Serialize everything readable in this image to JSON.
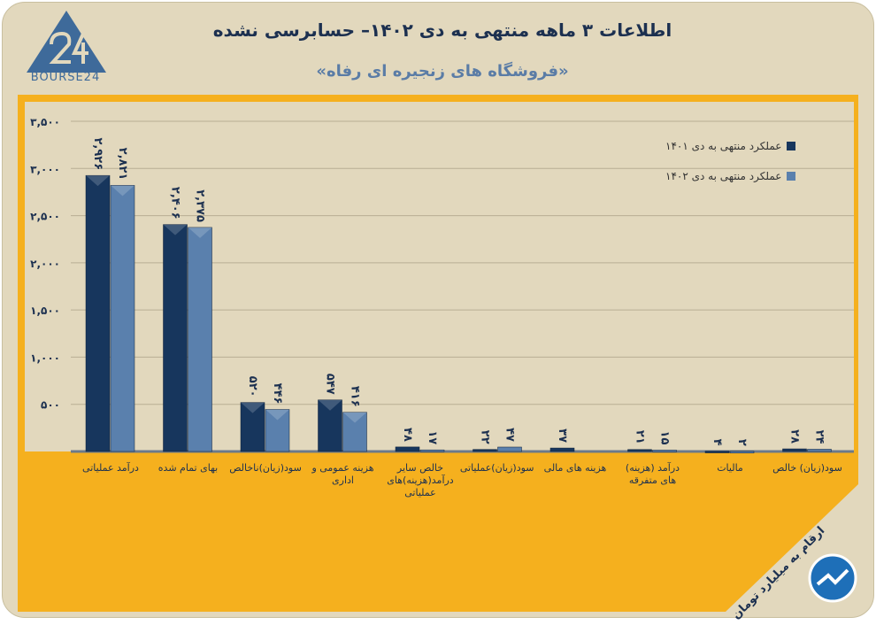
{
  "header": {
    "title": "اطلاعات ۳ ماهه منتهی به دی ۱۴۰۲– حسابرسی نشده",
    "subtitle": "«فروشگاه های زنجیره ای رفاه»",
    "logo_text": "BOURSE24"
  },
  "note": "ارقام به میلیارد تومان",
  "colors": {
    "series1": "#17365d",
    "series2": "#5a80ad",
    "panel": "#f5b01e",
    "plot": "#e2d8bd"
  },
  "chart_data": {
    "type": "bar",
    "ylim": [
      0,
      3500
    ],
    "yticks": [
      500,
      1000,
      1500,
      2000,
      2500,
      3000,
      3500
    ],
    "ytick_labels": [
      "۵۰۰",
      "۱,۰۰۰",
      "۱,۵۰۰",
      "۲,۰۰۰",
      "۲,۵۰۰",
      "۳,۰۰۰",
      "۳,۵۰۰"
    ],
    "grid": true,
    "legend_position": "top-right",
    "categories": [
      "درآمد عملیاتی",
      "بهای تمام شده",
      "سود(زیان)ناخالص",
      "هزینه عمومی و اداری",
      "خالص سایر درآمد(هزینه)های عملیاتی",
      "سود(زیان)عملیاتی",
      "هزینه های مالی",
      "درآمد (هزینه) های متفرقه",
      "مالیات",
      "سود(زیان) خالص"
    ],
    "series": [
      {
        "name": "عملکرد منتهی به دی ۱۴۰۱",
        "values": [
          2926,
          2406,
          520,
          547,
          48,
          22,
          37,
          21,
          4,
          28
        ],
        "labels": [
          "۲,۹۲۶",
          "۲,۴۰۶",
          "۵۲۰",
          "۵۴۷",
          "۴۸",
          "۲۲",
          "۳۷",
          "۲۱",
          "۴",
          "۲۸"
        ]
      },
      {
        "name": "عملکرد منتهی به دی ۱۴۰۲",
        "values": [
          2821,
          2375,
          446,
          416,
          17,
          47,
          null,
          15,
          2,
          24
        ],
        "labels": [
          "۲,۸۲۱",
          "۲,۳۷۵",
          "۴۴۶",
          "۴۱۶",
          "۱۷",
          "۴۷",
          "",
          "۱۵",
          "۲",
          "۲۴"
        ]
      }
    ]
  }
}
